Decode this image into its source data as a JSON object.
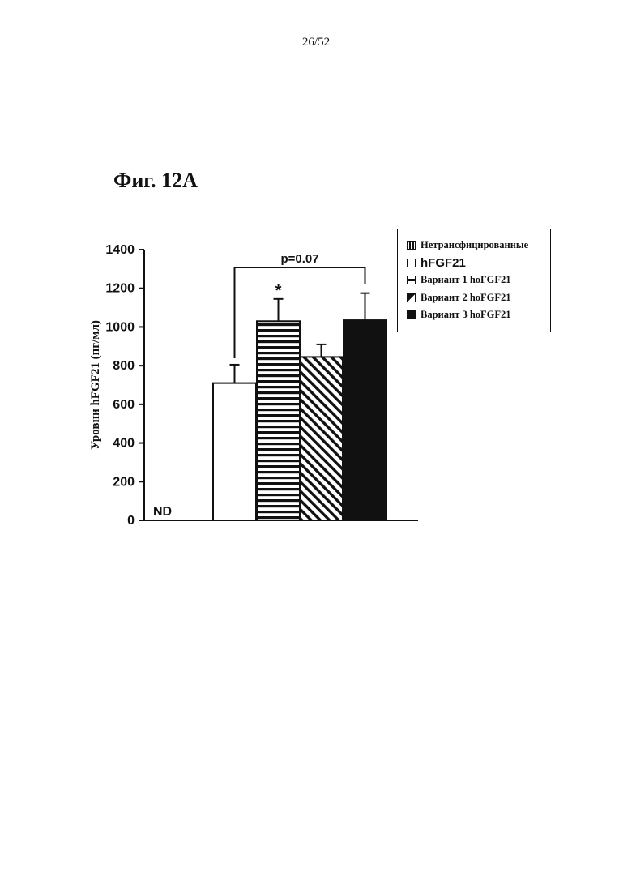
{
  "page": {
    "number": "26/52",
    "figure_title": "Фиг. 12A"
  },
  "legend": {
    "items": [
      {
        "label": "Нетрансфицированные",
        "pattern": "vertical-lines"
      },
      {
        "label": "hFGF21",
        "pattern": "empty"
      },
      {
        "label": "Вариант 1 hoFGF21",
        "pattern": "horizontal-lines"
      },
      {
        "label": "Вариант 2 hoFGF21",
        "pattern": "diagonal-lines"
      },
      {
        "label": "Вариант 3 hoFGF21",
        "pattern": "solid"
      }
    ]
  },
  "chart_data": {
    "type": "bar",
    "ylabel": "Уровни hFGF21 (пг/мл)",
    "ylim": [
      0,
      1400
    ],
    "yticks": [
      0,
      200,
      400,
      600,
      800,
      1000,
      1200,
      1400
    ],
    "grid": false,
    "legend_position": "top-right",
    "series": [
      {
        "name": "Нетрансфицированные",
        "value": null,
        "label": "ND",
        "pattern": "vertical-lines"
      },
      {
        "name": "hFGF21",
        "value": 710,
        "error": 95,
        "pattern": "empty"
      },
      {
        "name": "Вариант 1 hoFGF21",
        "value": 1030,
        "error": 115,
        "pattern": "horizontal-lines",
        "annotation": "*"
      },
      {
        "name": "Вариант 2 hoFGF21",
        "value": 845,
        "error": 65,
        "pattern": "diagonal-lines"
      },
      {
        "name": "Вариант 3 hoFGF21",
        "value": 1035,
        "error": 140,
        "pattern": "solid"
      }
    ],
    "comparison": {
      "from": "hFGF21",
      "to": "Вариант 3 hoFGF21",
      "label": "p=0.07"
    }
  }
}
